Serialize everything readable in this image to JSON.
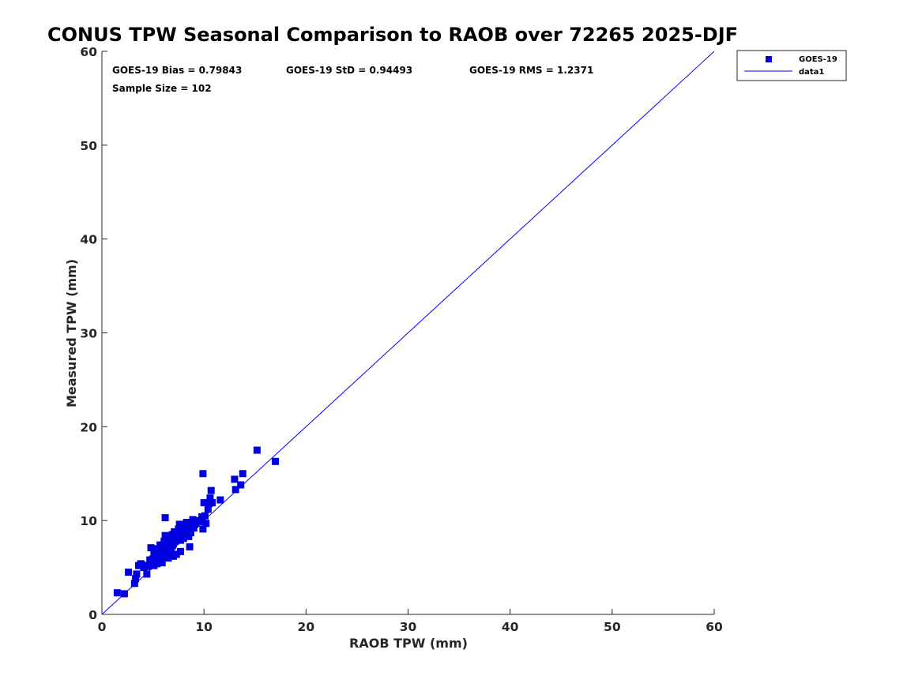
{
  "chart_data": {
    "type": "scatter",
    "title": "CONUS TPW Seasonal Comparison to RAOB over 72265 2025-DJF",
    "xlabel": "RAOB TPW (mm)",
    "ylabel": "Measured TPW (mm)",
    "xlim": [
      0,
      60
    ],
    "ylim": [
      0,
      60
    ],
    "xticks": [
      "0",
      "10",
      "20",
      "30",
      "40",
      "50",
      "60"
    ],
    "yticks": [
      "0",
      "10",
      "20",
      "30",
      "40",
      "50",
      "60"
    ],
    "grid": false,
    "legend_position": "outside top-right",
    "colors": {
      "marker": "#0000e0",
      "line": "#0000ff",
      "axis": "#262626"
    },
    "annotations": {
      "bias": "GOES-19 Bias = 0.79843",
      "std": "GOES-19 StD = 0.94493",
      "rms": "GOES-19 RMS = 1.2371",
      "sample_size": "Sample Size = 102"
    },
    "series": [
      {
        "name": "GOES-19",
        "kind": "scatter",
        "marker": "square",
        "points": [
          [
            1.5,
            2.3
          ],
          [
            2.2,
            2.2
          ],
          [
            2.6,
            4.5
          ],
          [
            3.2,
            3.3
          ],
          [
            3.3,
            3.8
          ],
          [
            3.4,
            4.3
          ],
          [
            3.6,
            5.2
          ],
          [
            3.8,
            5.4
          ],
          [
            4.1,
            5.0
          ],
          [
            4.4,
            4.3
          ],
          [
            4.6,
            5.2
          ],
          [
            4.8,
            7.1
          ],
          [
            4.9,
            5.6
          ],
          [
            5.0,
            5.9
          ],
          [
            5.1,
            5.2
          ],
          [
            5.2,
            6.8
          ],
          [
            5.3,
            6.1
          ],
          [
            5.4,
            5.4
          ],
          [
            5.5,
            7.0
          ],
          [
            5.6,
            6.5
          ],
          [
            5.7,
            7.4
          ],
          [
            5.7,
            5.9
          ],
          [
            5.8,
            6.2
          ],
          [
            5.9,
            5.5
          ],
          [
            6.0,
            6.9
          ],
          [
            6.0,
            7.3
          ],
          [
            6.1,
            6.2
          ],
          [
            6.2,
            10.3
          ],
          [
            6.2,
            8.4
          ],
          [
            6.3,
            7.1
          ],
          [
            6.4,
            6.7
          ],
          [
            6.4,
            7.6
          ],
          [
            6.5,
            6.0
          ],
          [
            6.6,
            8.2
          ],
          [
            6.7,
            7.2
          ],
          [
            6.8,
            6.5
          ],
          [
            6.8,
            7.9
          ],
          [
            6.9,
            8.5
          ],
          [
            7.0,
            6.2
          ],
          [
            7.0,
            7.5
          ],
          [
            7.1,
            8.8
          ],
          [
            7.2,
            7.8
          ],
          [
            7.3,
            6.4
          ],
          [
            7.4,
            8.2
          ],
          [
            7.5,
            9.1
          ],
          [
            7.5,
            8.5
          ],
          [
            7.6,
            9.6
          ],
          [
            7.7,
            6.7
          ],
          [
            7.7,
            7.9
          ],
          [
            7.8,
            8.6
          ],
          [
            7.9,
            9.3
          ],
          [
            8.0,
            8.1
          ],
          [
            8.1,
            9.0
          ],
          [
            8.2,
            8.4
          ],
          [
            8.3,
            9.8
          ],
          [
            8.4,
            8.9
          ],
          [
            8.5,
            8.3
          ],
          [
            8.6,
            7.2
          ],
          [
            8.7,
            8.7
          ],
          [
            8.8,
            9.4
          ],
          [
            8.9,
            10.1
          ],
          [
            9.0,
            9.2
          ],
          [
            9.2,
            9.7
          ],
          [
            9.4,
            10.0
          ],
          [
            9.6,
            9.9
          ],
          [
            9.8,
            10.4
          ],
          [
            9.9,
            9.1
          ],
          [
            9.9,
            15.0
          ],
          [
            10.0,
            11.9
          ],
          [
            10.1,
            10.5
          ],
          [
            10.2,
            9.7
          ],
          [
            10.4,
            11.2
          ],
          [
            10.5,
            11.8
          ],
          [
            10.6,
            12.4
          ],
          [
            10.7,
            13.2
          ],
          [
            10.8,
            11.9
          ],
          [
            11.6,
            12.2
          ],
          [
            13.0,
            14.4
          ],
          [
            13.1,
            13.3
          ],
          [
            13.6,
            13.8
          ],
          [
            13.8,
            15.0
          ],
          [
            15.2,
            17.5
          ],
          [
            17.0,
            16.3
          ],
          [
            4.5,
            5.1
          ],
          [
            4.9,
            5.3
          ],
          [
            5.1,
            6.4
          ],
          [
            5.8,
            6.5
          ],
          [
            6.1,
            7.8
          ],
          [
            6.6,
            7.4
          ],
          [
            7.2,
            8.4
          ],
          [
            7.6,
            8.9
          ],
          [
            8.1,
            8.8
          ],
          [
            8.6,
            9.3
          ],
          [
            5.4,
            6.0
          ],
          [
            6.9,
            7.3
          ],
          [
            7.3,
            7.9
          ],
          [
            5.2,
            5.6
          ],
          [
            6.3,
            6.4
          ],
          [
            7.9,
            9.6
          ],
          [
            3.9,
            5.3
          ],
          [
            4.7,
            5.8
          ],
          [
            9.1,
            9.6
          ]
        ]
      },
      {
        "name": "data1",
        "kind": "line",
        "points": [
          [
            0,
            0
          ],
          [
            60,
            60
          ]
        ]
      }
    ]
  }
}
